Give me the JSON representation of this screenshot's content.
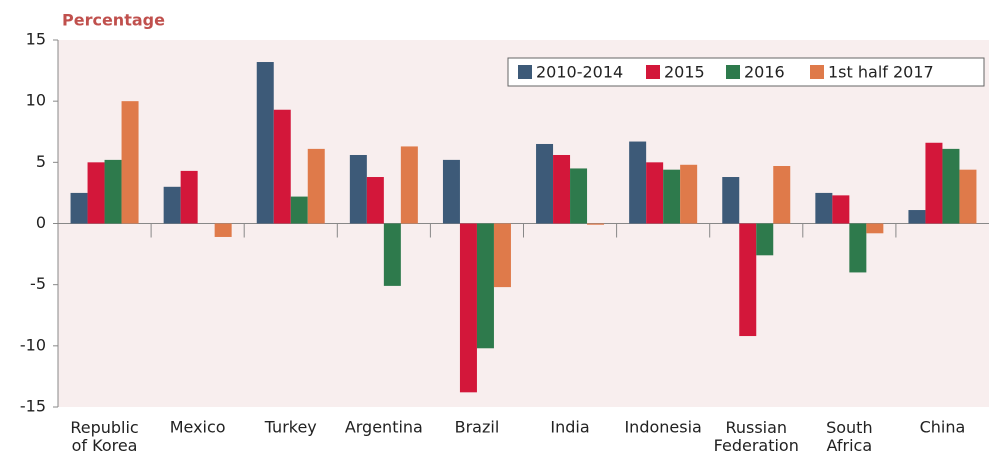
{
  "chart_data": {
    "type": "bar",
    "ylabel": "Percentage",
    "categories": [
      "Republic\nof Korea",
      "Mexico",
      "Turkey",
      "Argentina",
      "Brazil",
      "India",
      "Indonesia",
      "Russian\nFederation",
      "South\nAfrica",
      "China"
    ],
    "series": [
      {
        "name": "2010-2014",
        "color": "#3d5a78",
        "values": [
          2.5,
          3.0,
          13.2,
          5.6,
          5.2,
          6.5,
          6.7,
          3.8,
          2.5,
          1.1
        ]
      },
      {
        "name": "2015",
        "color": "#d3173a",
        "values": [
          5.0,
          4.3,
          9.3,
          3.8,
          -13.8,
          5.6,
          5.0,
          -9.2,
          2.3,
          6.6
        ]
      },
      {
        "name": "2016",
        "color": "#2e7a4c",
        "values": [
          5.2,
          null,
          2.2,
          -5.1,
          -10.2,
          4.5,
          4.4,
          -2.6,
          -4.0,
          6.1
        ]
      },
      {
        "name": "1st half 2017",
        "color": "#df7a4a",
        "values": [
          10.0,
          -1.1,
          6.1,
          6.3,
          -5.2,
          -0.1,
          4.8,
          4.7,
          -0.8,
          4.4
        ]
      }
    ],
    "ylim": [
      -15,
      15
    ],
    "yticks": [
      -15,
      -10,
      -5,
      0,
      5,
      10,
      15
    ],
    "legend": "top-right"
  }
}
